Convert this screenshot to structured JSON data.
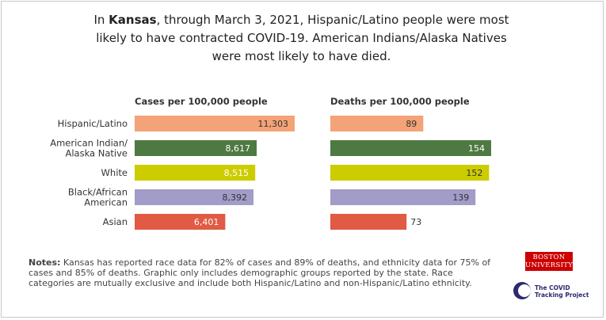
{
  "headline": {
    "prefix": "In ",
    "state": "Kansas",
    "line1_rest": ", through March 3, 2021, Hispanic/Latino people were most",
    "line2": "likely to have contracted COVID-19. American Indians/Alaska Natives",
    "line3": "were most likely to have died."
  },
  "chart_data": [
    {
      "type": "bar",
      "orientation": "horizontal",
      "title": "Cases per 100,000 people",
      "categories": [
        [
          "Hispanic/Latino"
        ],
        [
          "American Indian/",
          "Alaska Native"
        ],
        [
          "White"
        ],
        [
          "Black/African",
          "American"
        ],
        [
          "Asian"
        ]
      ],
      "values": [
        11303,
        8617,
        8515,
        8392,
        6401
      ],
      "value_labels": [
        "11,303",
        "8,617",
        "8,515",
        "8,392",
        "6,401"
      ],
      "xlim": [
        0,
        11303
      ],
      "colors": [
        "#f4a277",
        "#4f7942",
        "#cccc00",
        "#a29cc8",
        "#e05a44"
      ],
      "label_colors": [
        "#333333",
        "#ffffff",
        "#ffffff",
        "#333333",
        "#ffffff"
      ]
    },
    {
      "type": "bar",
      "orientation": "horizontal",
      "title": "Deaths per 100,000 people",
      "categories": [
        [
          "Hispanic/Latino"
        ],
        [
          "American Indian/",
          "Alaska Native"
        ],
        [
          "White"
        ],
        [
          "Black/African",
          "American"
        ],
        [
          "Asian"
        ]
      ],
      "values": [
        89,
        154,
        152,
        139,
        73
      ],
      "value_labels": [
        "89",
        "154",
        "152",
        "139",
        "73"
      ],
      "xlim": [
        0,
        154
      ],
      "colors": [
        "#f4a277",
        "#4f7942",
        "#cccc00",
        "#a29cc8",
        "#e05a44"
      ],
      "label_colors": [
        "#333333",
        "#ffffff",
        "#333333",
        "#333333",
        "#333333"
      ]
    }
  ],
  "notes": {
    "label": "Notes:",
    "text": " Kansas has reported race data for 82% of cases and 89% of deaths, and ethnicity data for 75% of cases and 85% of deaths. Graphic only includes demographic groups reported by the state. Race categories are mutually exclusive and include both Hispanic/Latino and non-Hispanic/Latino ethnicity."
  },
  "logos": {
    "bu_line1": "BOSTON",
    "bu_line2": "UNIVERSITY",
    "ctp_line1": "The COVID",
    "ctp_line2": "Tracking Project"
  }
}
